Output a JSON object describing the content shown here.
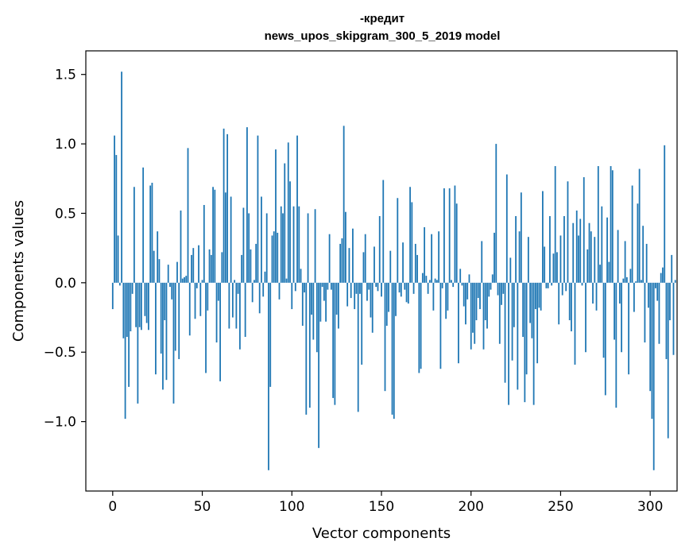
{
  "chart_data": {
    "type": "bar",
    "title": "-кредит",
    "subtitle": "news_upos_skipgram_300_5_2019 model",
    "xlabel": "Vector components",
    "ylabel": "Components values",
    "xlim": [
      -15,
      315
    ],
    "ylim": [
      -1.5,
      1.67
    ],
    "xticks": [
      0,
      50,
      100,
      150,
      200,
      250,
      300
    ],
    "yticks": [
      -1.0,
      -0.5,
      0.0,
      0.5,
      1.0,
      1.5
    ],
    "ytick_labels": [
      "−1.0",
      "−0.5",
      "0.0",
      "0.5",
      "1.0",
      "1.5"
    ],
    "bar_color": "#1f77b4",
    "values": [
      -0.19,
      1.06,
      0.92,
      0.34,
      -0.02,
      1.52,
      -0.4,
      -0.98,
      -0.39,
      -0.75,
      -0.35,
      -0.08,
      0.69,
      -0.32,
      -0.87,
      -0.32,
      -0.34,
      0.83,
      -0.24,
      -0.29,
      -0.34,
      0.7,
      0.72,
      0.23,
      -0.66,
      0.37,
      0.17,
      -0.51,
      -0.77,
      -0.27,
      -0.7,
      0.13,
      -0.03,
      -0.12,
      -0.87,
      -0.49,
      0.15,
      -0.55,
      0.52,
      0.03,
      0.04,
      0.05,
      0.97,
      -0.38,
      0.2,
      0.25,
      -0.26,
      -0.04,
      0.27,
      -0.24,
      0.02,
      0.56,
      -0.65,
      -0.2,
      0.24,
      0.2,
      0.69,
      0.67,
      -0.43,
      -0.13,
      -0.71,
      0.22,
      1.11,
      0.65,
      1.07,
      -0.33,
      0.62,
      -0.25,
      0.02,
      -0.33,
      -0.08,
      -0.48,
      0.2,
      0.54,
      -0.39,
      1.12,
      0.5,
      0.24,
      -0.14,
      0.02,
      0.28,
      1.06,
      -0.22,
      0.62,
      -0.1,
      0.08,
      0.5,
      -1.35,
      -0.75,
      0.34,
      0.37,
      0.96,
      0.36,
      -0.12,
      0.55,
      0.5,
      0.86,
      0.03,
      1.01,
      0.73,
      -0.19,
      0.55,
      -0.06,
      1.06,
      0.55,
      0.1,
      -0.31,
      -0.07,
      -0.95,
      0.5,
      -0.9,
      -0.23,
      -0.41,
      0.53,
      -0.5,
      -1.19,
      -0.28,
      -0.03,
      -0.13,
      -0.28,
      -0.05,
      0.35,
      -0.05,
      -0.83,
      -0.88,
      -0.23,
      -0.33,
      0.28,
      0.32,
      1.13,
      0.51,
      -0.17,
      0.25,
      -0.11,
      0.39,
      -0.19,
      -0.08,
      -0.93,
      -0.08,
      -0.59,
      0.22,
      0.35,
      -0.13,
      -0.05,
      -0.25,
      -0.36,
      0.26,
      -0.03,
      -0.06,
      0.48,
      -0.1,
      0.74,
      -0.78,
      -0.31,
      -0.21,
      0.23,
      -0.95,
      -0.98,
      -0.24,
      0.61,
      -0.07,
      -0.1,
      0.29,
      -0.05,
      -0.14,
      -0.15,
      0.69,
      0.58,
      -0.08,
      0.28,
      0.2,
      -0.65,
      -0.62,
      0.07,
      0.4,
      0.05,
      -0.08,
      0.02,
      0.35,
      -0.2,
      0.03,
      0.02,
      0.37,
      -0.62,
      -0.04,
      0.68,
      -0.26,
      -0.2,
      0.68,
      0.02,
      -0.03,
      0.7,
      0.57,
      -0.58,
      0.1,
      -0.02,
      -0.17,
      -0.3,
      -0.12,
      0.06,
      -0.48,
      -0.36,
      -0.44,
      -0.27,
      -0.11,
      -0.19,
      0.3,
      -0.48,
      -0.27,
      -0.33,
      -0.1,
      -0.05,
      0.06,
      0.36,
      1.0,
      -0.09,
      -0.44,
      -0.16,
      -0.08,
      -0.72,
      0.78,
      -0.88,
      0.18,
      -0.56,
      -0.32,
      0.48,
      -0.77,
      0.37,
      0.65,
      -0.39,
      -0.86,
      -0.66,
      0.33,
      -0.29,
      -0.4,
      -0.88,
      -0.19,
      -0.58,
      -0.18,
      -0.2,
      0.66,
      0.26,
      -0.04,
      -0.04,
      0.48,
      -0.02,
      0.21,
      0.84,
      0.22,
      -0.3,
      0.34,
      -0.09,
      0.48,
      -0.06,
      0.73,
      -0.27,
      -0.35,
      0.43,
      -0.59,
      0.52,
      0.34,
      0.46,
      -0.02,
      0.76,
      -0.5,
      0.24,
      0.43,
      0.37,
      -0.15,
      0.33,
      -0.2,
      0.84,
      0.13,
      0.55,
      -0.54,
      -0.81,
      0.47,
      0.15,
      0.84,
      0.81,
      -0.41,
      -0.9,
      0.38,
      -0.15,
      -0.5,
      0.03,
      0.3,
      0.04,
      -0.66,
      0.1,
      0.7,
      -0.21,
      0.01,
      0.57,
      0.82,
      0.02,
      0.41,
      -0.43,
      0.28,
      -0.18,
      -0.78,
      -0.98,
      -1.35,
      -0.04,
      -0.13,
      -0.44,
      0.07,
      0.11,
      0.99,
      -0.55,
      -1.12,
      -0.27,
      0.2,
      -0.52,
      0.02
    ]
  }
}
